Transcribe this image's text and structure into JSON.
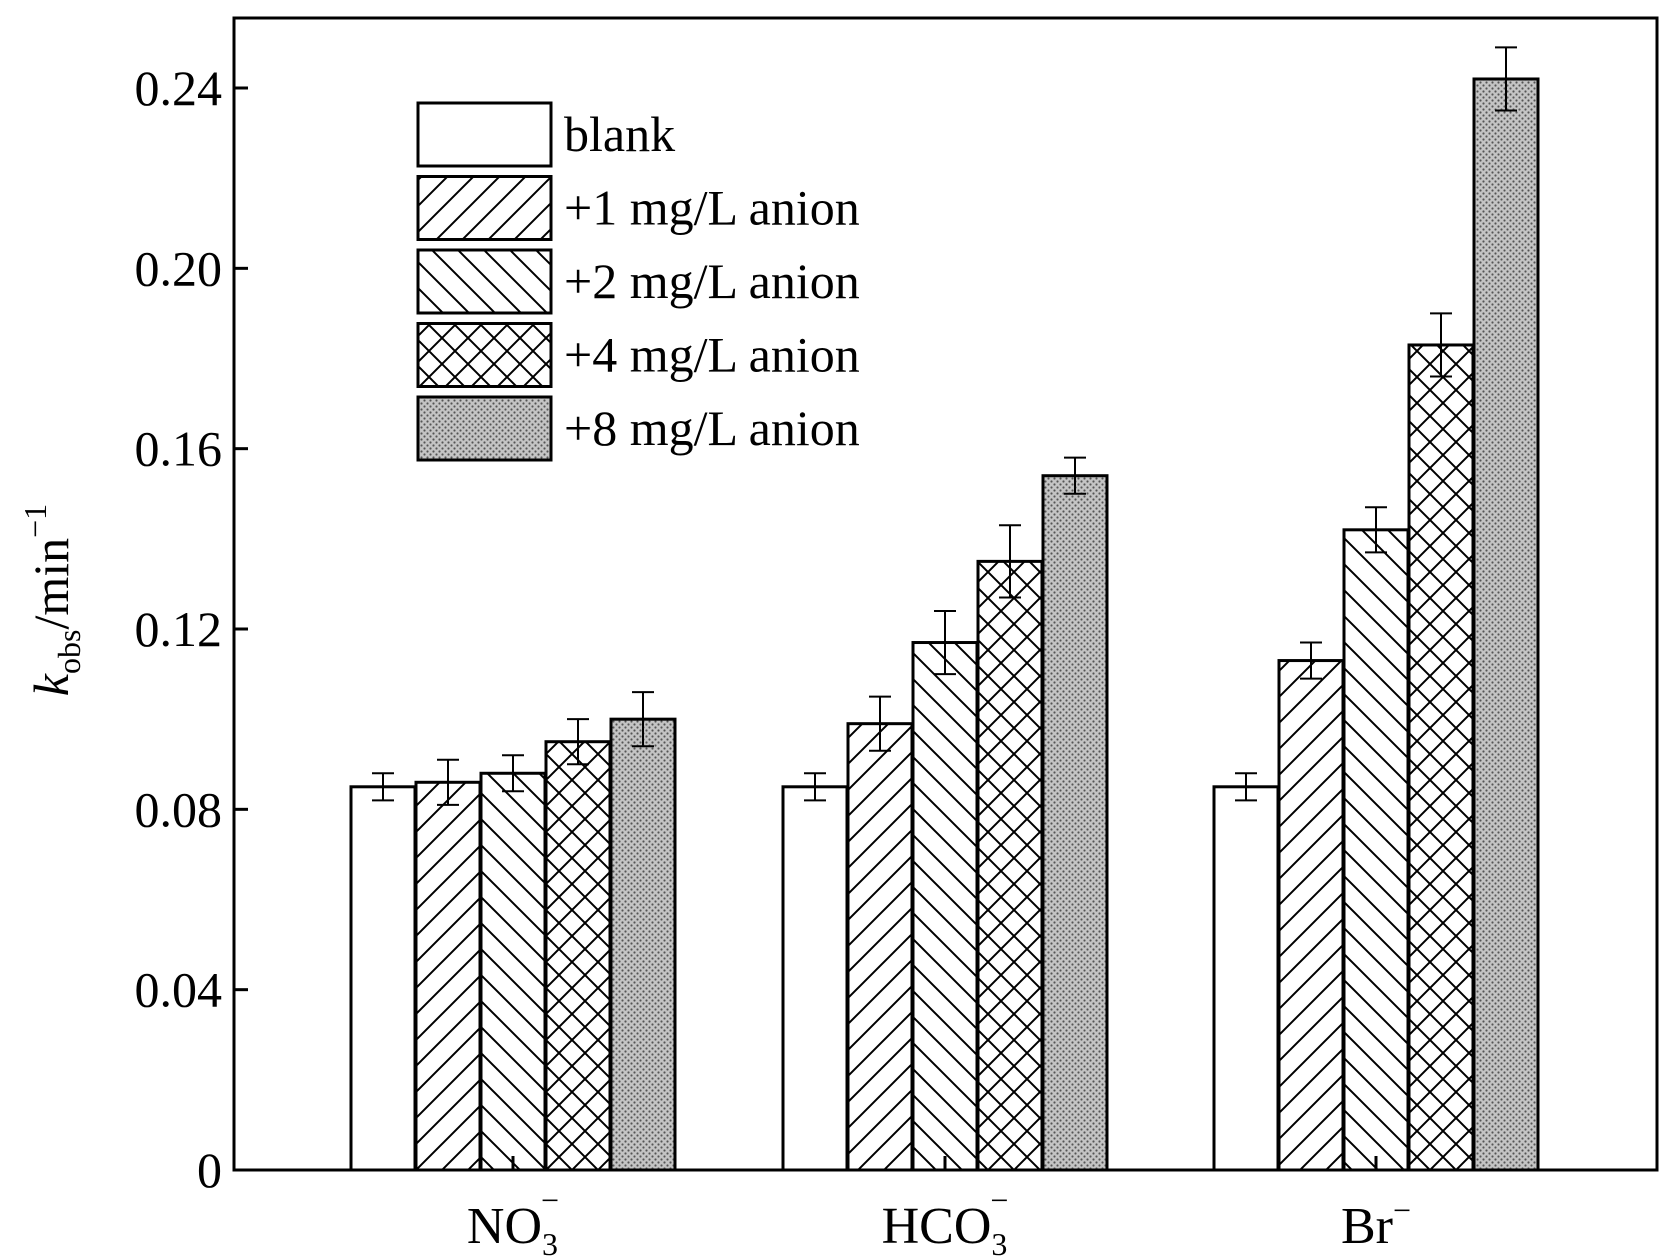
{
  "chart_data": {
    "type": "bar",
    "categories": [
      {
        "base": "NO",
        "sub": "3",
        "sup": "−"
      },
      {
        "base": "HCO",
        "sub": "3",
        "sup": "−"
      },
      {
        "base": "Br",
        "sub": "",
        "sup": "−"
      }
    ],
    "series": [
      {
        "name": "blank",
        "pattern": "none",
        "values": [
          0.085,
          0.085,
          0.085
        ],
        "errors": [
          0.003,
          0.003,
          0.003
        ]
      },
      {
        "name": "+1 mg/L anion",
        "pattern": "diag-forward",
        "values": [
          0.086,
          0.099,
          0.113
        ],
        "errors": [
          0.005,
          0.006,
          0.004
        ]
      },
      {
        "name": "+2 mg/L anion",
        "pattern": "diag-back",
        "values": [
          0.088,
          0.117,
          0.142
        ],
        "errors": [
          0.004,
          0.007,
          0.005
        ]
      },
      {
        "name": "+4 mg/L anion",
        "pattern": "crosshatch",
        "values": [
          0.095,
          0.135,
          0.183
        ],
        "errors": [
          0.005,
          0.008,
          0.007
        ]
      },
      {
        "name": "+8 mg/L anion",
        "pattern": "dotted",
        "values": [
          0.1,
          0.154,
          0.242
        ],
        "errors": [
          0.006,
          0.004,
          0.007
        ]
      }
    ],
    "ylim": [
      0,
      0.24
    ],
    "yticks": [
      "0",
      "0.04",
      "0.08",
      "0.12",
      "0.16",
      "0.20",
      "0.24"
    ],
    "ylabel": {
      "italic": "k",
      "sub": "obs",
      "rest": "/min",
      "sup": "−1"
    },
    "legend_position": "top-left",
    "grid": false,
    "colors": {
      "stroke": "#000000",
      "background": "#ffffff",
      "dotted_fill": "#b8b8b8"
    }
  }
}
